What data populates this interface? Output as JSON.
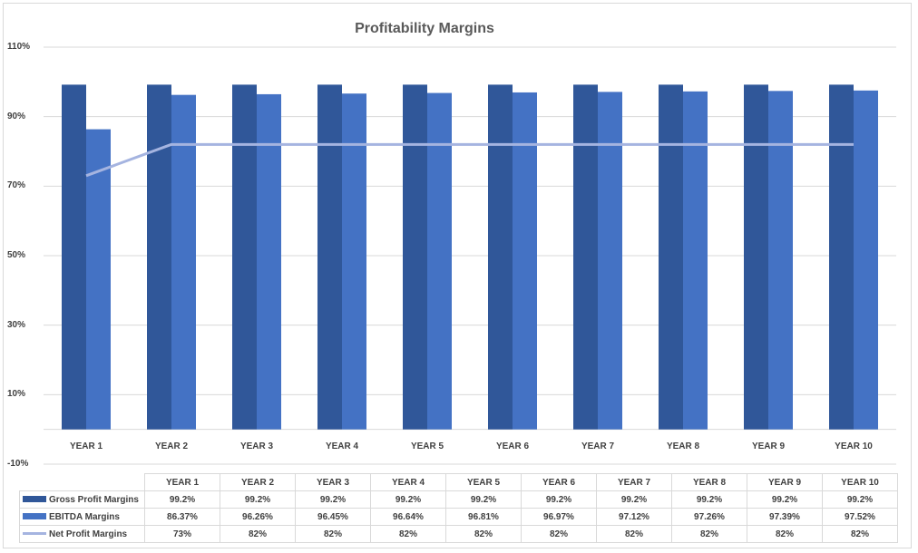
{
  "chart_data": {
    "type": "bar",
    "title": "Profitability Margins",
    "categories": [
      "YEAR 1",
      "YEAR 2",
      "YEAR 3",
      "YEAR 4",
      "YEAR 5",
      "YEAR 6",
      "YEAR 7",
      "YEAR 8",
      "YEAR 9",
      "YEAR 10"
    ],
    "y_ticks": [
      "110%",
      "90%",
      "70%",
      "50%",
      "30%",
      "10%",
      "-10%"
    ],
    "ylim": [
      -10,
      110
    ],
    "grid": true,
    "legend": "data table with legend keys below the chart",
    "series": [
      {
        "name": "Gross Profit Margins",
        "type": "bar",
        "color": "#305799",
        "values": [
          99.2,
          99.2,
          99.2,
          99.2,
          99.2,
          99.2,
          99.2,
          99.2,
          99.2,
          99.2
        ],
        "labels": [
          "99.2%",
          "99.2%",
          "99.2%",
          "99.2%",
          "99.2%",
          "99.2%",
          "99.2%",
          "99.2%",
          "99.2%",
          "99.2%"
        ]
      },
      {
        "name": "EBITDA Margins",
        "type": "bar",
        "color": "#4472C4",
        "values": [
          86.37,
          96.26,
          96.45,
          96.64,
          96.81,
          96.97,
          97.12,
          97.26,
          97.39,
          97.52
        ],
        "labels": [
          "86.37%",
          "96.26%",
          "96.45%",
          "96.64%",
          "96.81%",
          "96.97%",
          "97.12%",
          "97.26%",
          "97.39%",
          "97.52%"
        ]
      },
      {
        "name": "Net Profit Margins",
        "type": "line",
        "color": "#A5B4E0",
        "values": [
          73,
          82,
          82,
          82,
          82,
          82,
          82,
          82,
          82,
          82
        ],
        "labels": [
          "73%",
          "82%",
          "82%",
          "82%",
          "82%",
          "82%",
          "82%",
          "82%",
          "82%",
          "82%"
        ]
      }
    ]
  }
}
